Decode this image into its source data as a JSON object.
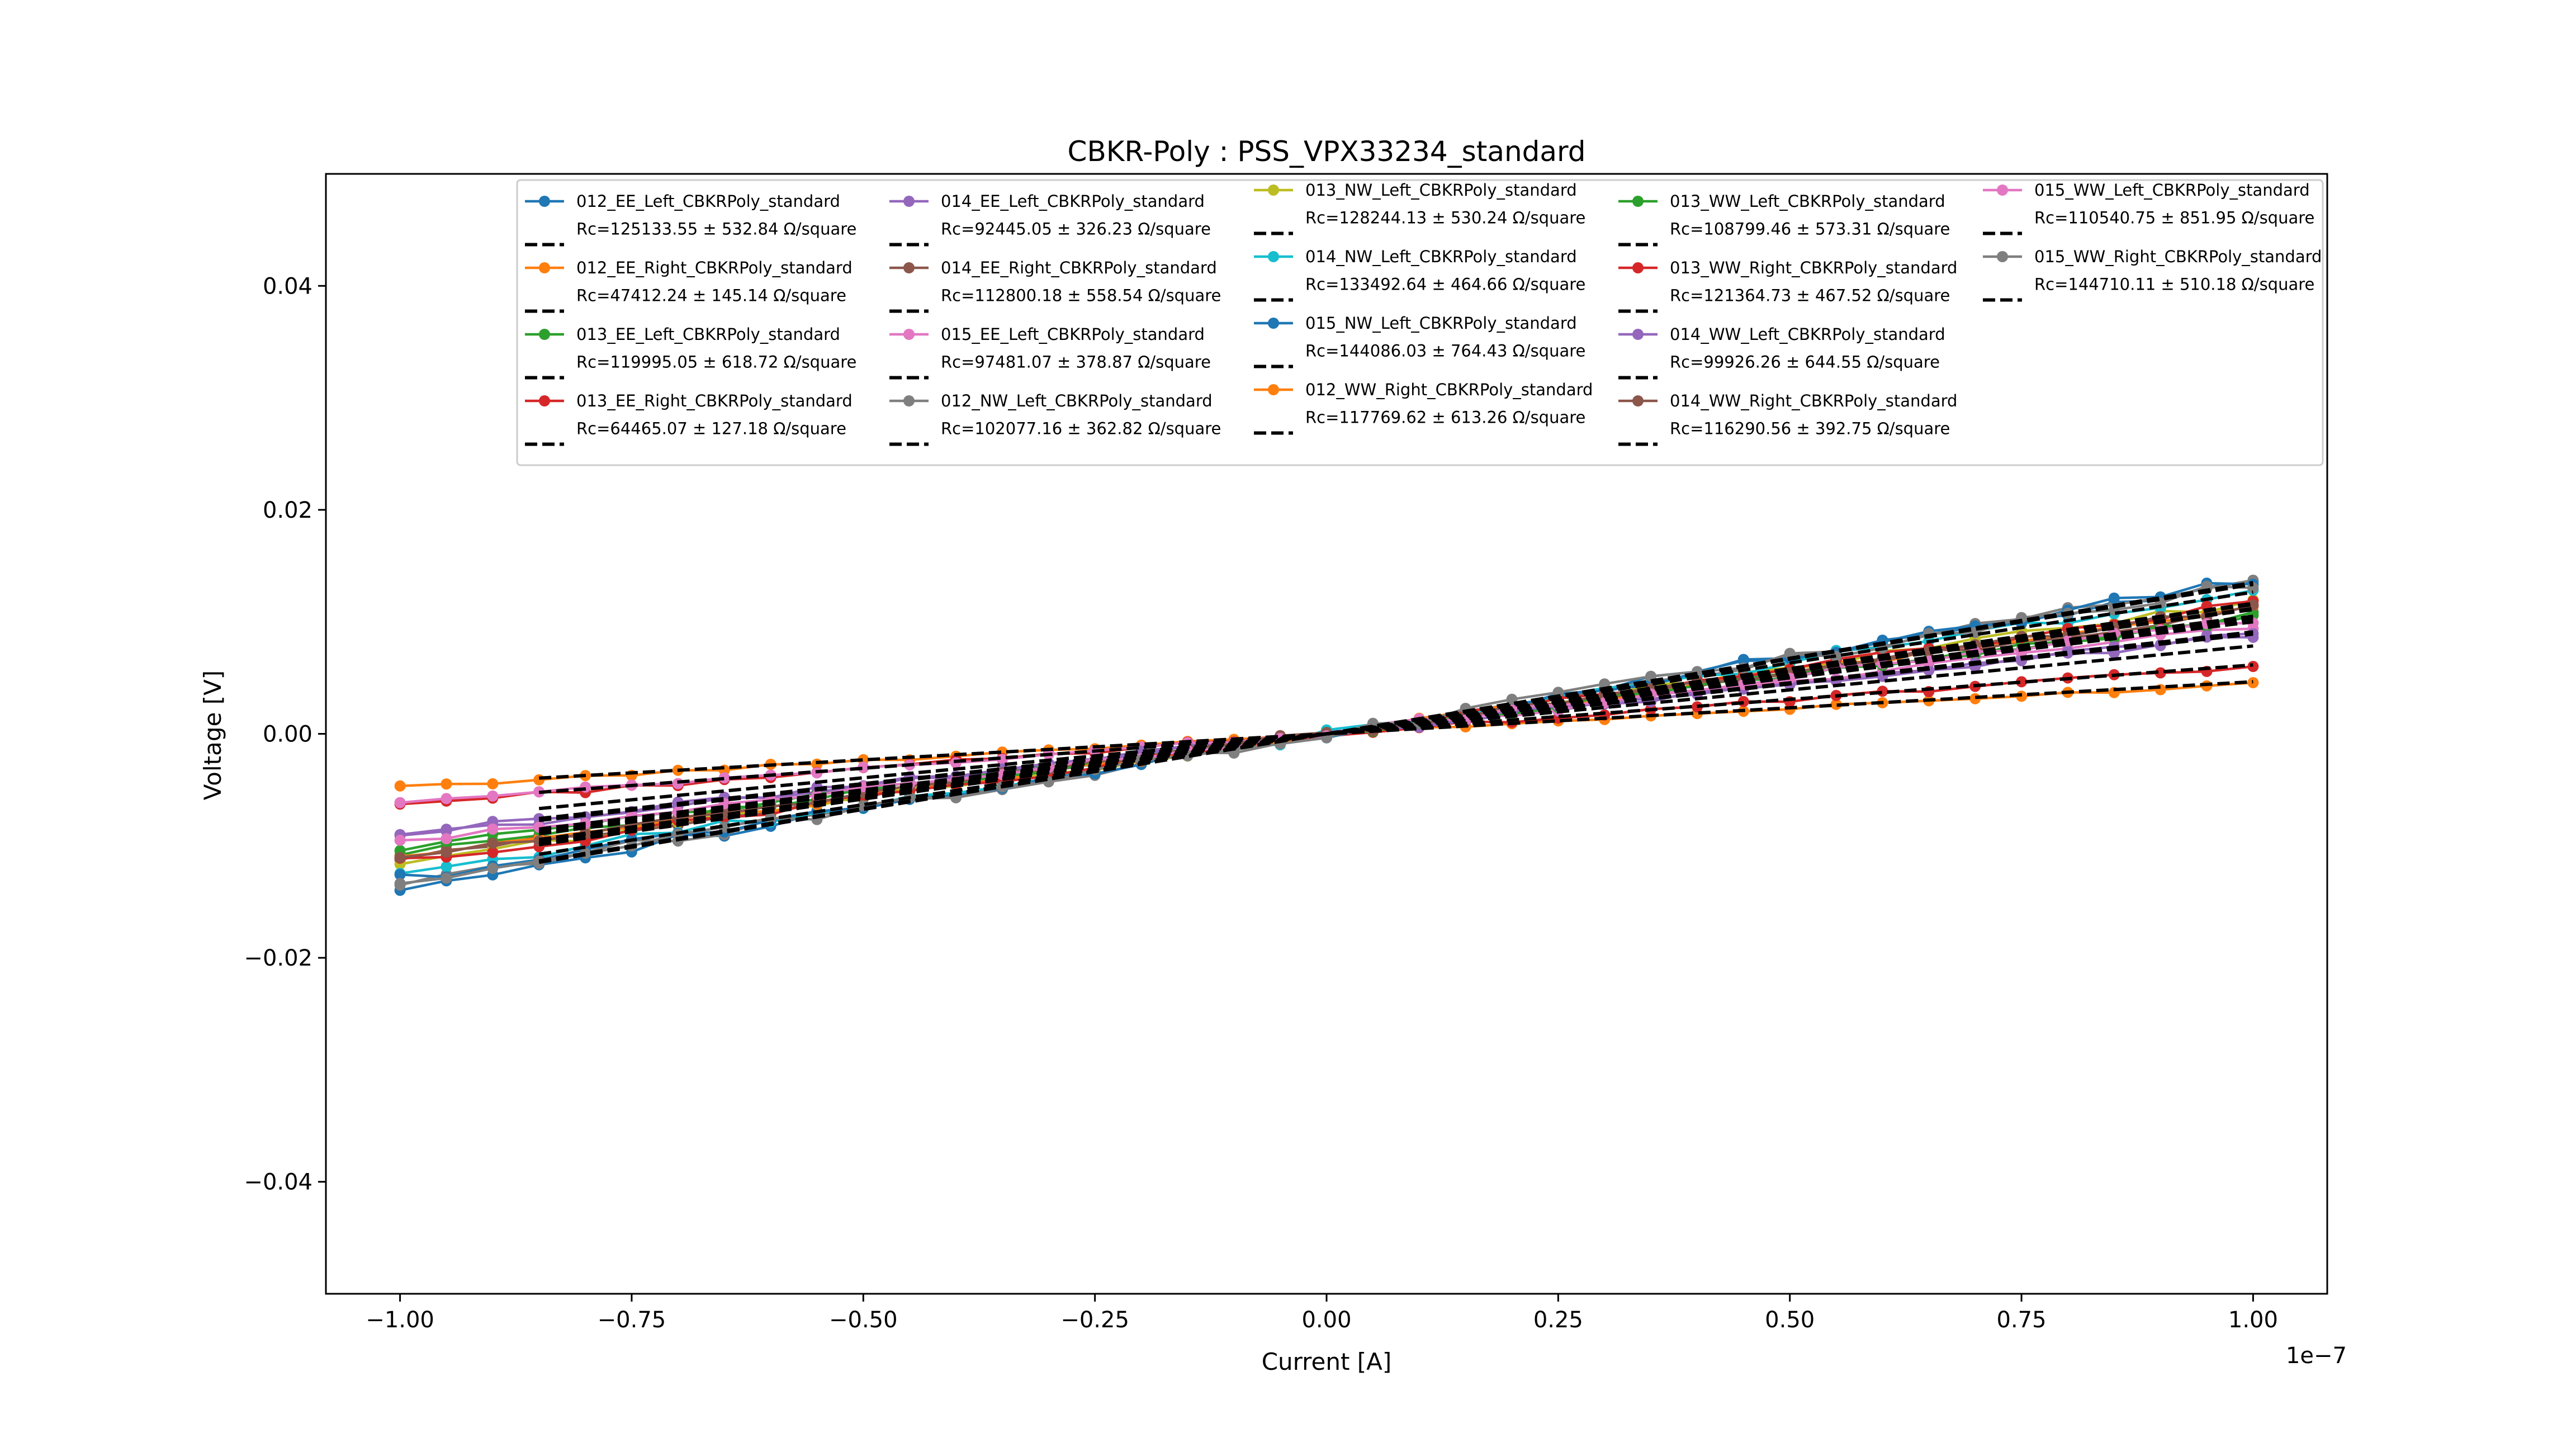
{
  "chart_data": {
    "type": "line",
    "title": "CBKR-Poly : PSS_VPX33234_standard",
    "xlabel": "Current [A]",
    "ylabel": "Voltage [V]",
    "x_offset_label": "1e−7",
    "xlim": [
      -1.08,
      1.08
    ],
    "ylim": [
      -0.05,
      0.05
    ],
    "x_ticks": [
      -1.0,
      -0.75,
      -0.5,
      -0.25,
      0.0,
      0.25,
      0.5,
      0.75,
      1.0
    ],
    "x_tick_labels": [
      "−1.00",
      "−0.75",
      "−0.50",
      "−0.25",
      "0.00",
      "0.25",
      "0.50",
      "0.75",
      "1.00"
    ],
    "y_ticks": [
      -0.04,
      -0.02,
      0.0,
      0.02,
      0.04
    ],
    "y_tick_labels": [
      "−0.04",
      "−0.02",
      "0.00",
      "0.02",
      "0.04"
    ],
    "grid": false,
    "legend_position": "top",
    "x": [
      -1.0,
      -0.95,
      -0.9,
      -0.85,
      -0.8,
      -0.75,
      -0.7,
      -0.65,
      -0.6,
      -0.55,
      -0.5,
      -0.45,
      -0.4,
      -0.35,
      -0.3,
      -0.25,
      -0.2,
      -0.15,
      -0.1,
      -0.05,
      0.0,
      0.05,
      0.1,
      0.15,
      0.2,
      0.25,
      0.3,
      0.35,
      0.4,
      0.45,
      0.5,
      0.55,
      0.6,
      0.65,
      0.7,
      0.75,
      0.8,
      0.85,
      0.9,
      0.95,
      1.0
    ],
    "series": [
      {
        "name": "012_EE_Left_CBKRPoly_standard",
        "fit_label": "Rc=125133.55 ± 532.84 Ω/square",
        "color": "#1f77b4",
        "ymin": -0.0135,
        "ymax": 0.0135
      },
      {
        "name": "012_EE_Right_CBKRPoly_standard",
        "fit_label": "Rc=47412.24 ± 145.14 Ω/square",
        "color": "#ff7f0e",
        "ymin": -0.0048,
        "ymax": 0.0045
      },
      {
        "name": "013_EE_Left_CBKRPoly_standard",
        "fit_label": "Rc=119995.05 ± 618.72 Ω/square",
        "color": "#2ca02c",
        "ymin": -0.0105,
        "ymax": 0.0105
      },
      {
        "name": "013_EE_Right_CBKRPoly_standard",
        "fit_label": "Rc=64465.07 ± 127.18 Ω/square",
        "color": "#d62728",
        "ymin": -0.0063,
        "ymax": 0.006
      },
      {
        "name": "014_EE_Left_CBKRPoly_standard",
        "fit_label": "Rc=92445.05 ± 326.23 Ω/square",
        "color": "#9467bd",
        "ymin": -0.009,
        "ymax": 0.0088
      },
      {
        "name": "014_EE_Right_CBKRPoly_standard",
        "fit_label": "Rc=112800.18 ± 558.54 Ω/square",
        "color": "#8c564b",
        "ymin": -0.0112,
        "ymax": 0.011
      },
      {
        "name": "015_EE_Left_CBKRPoly_standard",
        "fit_label": "Rc=97481.07 ± 378.87 Ω/square",
        "color": "#e377c2",
        "ymin": -0.0062,
        "ymax": 0.0095
      },
      {
        "name": "012_NW_Left_CBKRPoly_standard",
        "fit_label": "Rc=102077.16 ± 362.82 Ω/square",
        "color": "#7f7f7f",
        "ymin": -0.0132,
        "ymax": 0.0135
      },
      {
        "name": "013_NW_Left_CBKRPoly_standard",
        "fit_label": "Rc=128244.13 ± 530.24 Ω/square",
        "color": "#bcbd22",
        "ymin": -0.0115,
        "ymax": 0.0118
      },
      {
        "name": "014_NW_Left_CBKRPoly_standard",
        "fit_label": "Rc=133492.64 ± 464.66 Ω/square",
        "color": "#17becf",
        "ymin": -0.0125,
        "ymax": 0.0128
      },
      {
        "name": "015_NW_Left_CBKRPoly_standard",
        "fit_label": "Rc=144086.03 ± 764.43 Ω/square",
        "color": "#1f77b4",
        "ymin": -0.013,
        "ymax": 0.0137
      },
      {
        "name": "012_WW_Right_CBKRPoly_standard",
        "fit_label": "Rc=117769.62 ± 613.26 Ω/square",
        "color": "#ff7f0e",
        "ymin": -0.0112,
        "ymax": 0.0112
      },
      {
        "name": "013_WW_Left_CBKRPoly_standard",
        "fit_label": "Rc=108799.46 ± 573.31 Ω/square",
        "color": "#2ca02c",
        "ymin": -0.0102,
        "ymax": 0.0104
      },
      {
        "name": "013_WW_Right_CBKRPoly_standard",
        "fit_label": "Rc=121364.73 ± 467.52 Ω/square",
        "color": "#d62728",
        "ymin": -0.0115,
        "ymax": 0.0116
      },
      {
        "name": "014_WW_Left_CBKRPoly_standard",
        "fit_label": "Rc=99926.26 ± 644.55 Ω/square",
        "color": "#9467bd",
        "ymin": -0.0092,
        "ymax": 0.009
      },
      {
        "name": "014_WW_Right_CBKRPoly_standard",
        "fit_label": "Rc=116290.56 ± 392.75 Ω/square",
        "color": "#8c564b",
        "ymin": -0.011,
        "ymax": 0.0113
      },
      {
        "name": "015_WW_Left_CBKRPoly_standard",
        "fit_label": "Rc=110540.75 ± 851.95 Ω/square",
        "color": "#e377c2",
        "ymin": -0.0098,
        "ymax": 0.0102
      },
      {
        "name": "015_WW_Right_CBKRPoly_standard",
        "fit_label": "Rc=144710.11 ± 510.18 Ω/square",
        "color": "#7f7f7f",
        "ymin": -0.0133,
        "ymax": 0.0134
      }
    ]
  }
}
